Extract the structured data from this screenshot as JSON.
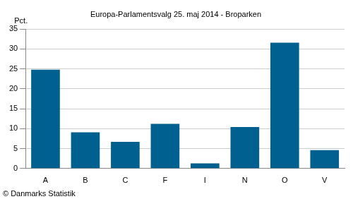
{
  "chart_data": {
    "type": "bar",
    "title": "Europa-Parlamentsvalg 25. maj 2014 - Broparken",
    "y_label": "Pct.",
    "annotation": "© Danmarks Statistik",
    "categories": [
      "A",
      "B",
      "C",
      "F",
      "I",
      "N",
      "O",
      "V"
    ],
    "values": [
      24.8,
      9.1,
      6.7,
      11.2,
      1.3,
      10.4,
      31.6,
      4.6
    ],
    "color": "#00608f",
    "ylim": [
      0,
      35
    ],
    "yticks": [
      0,
      5,
      10,
      15,
      20,
      25,
      30,
      35
    ],
    "grid": true
  }
}
